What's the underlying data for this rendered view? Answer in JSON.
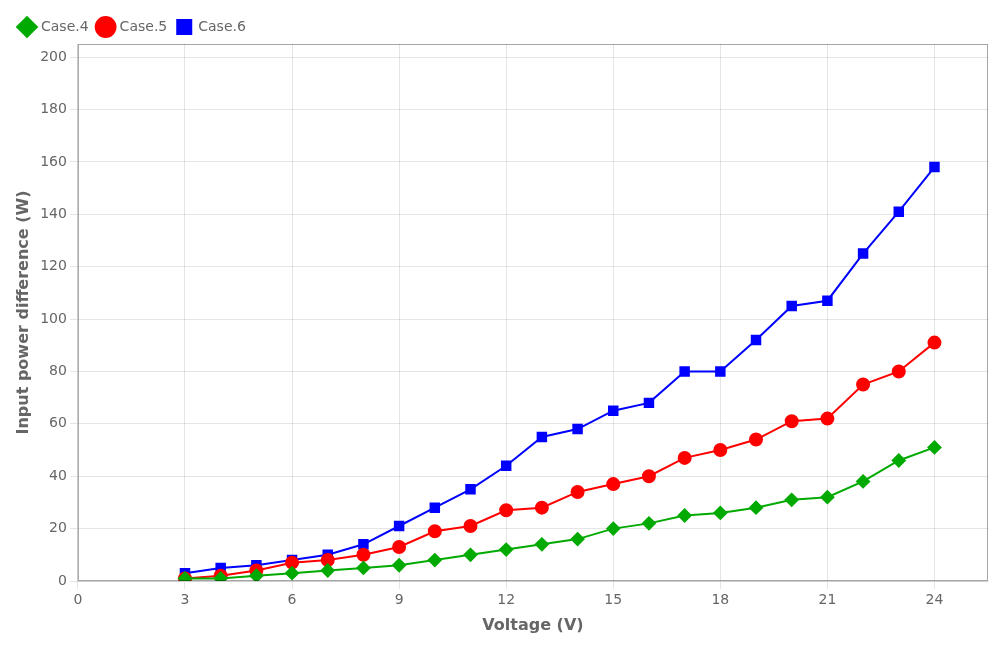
{
  "chart_data": {
    "type": "line",
    "x": [
      3,
      4,
      5,
      6,
      7,
      8,
      9,
      10,
      11,
      12,
      13,
      14,
      15,
      16,
      17,
      18,
      19,
      20,
      21,
      22,
      23,
      24
    ],
    "series": [
      {
        "name": "Case.4",
        "color": "#00aa00",
        "marker": "diamond",
        "values": [
          1,
          1,
          2,
          3,
          4,
          5,
          6,
          8,
          10,
          12,
          14,
          16,
          20,
          22,
          25,
          26,
          28,
          31,
          32,
          38,
          46,
          51
        ]
      },
      {
        "name": "Case.5",
        "color": "#ff0000",
        "marker": "circle",
        "values": [
          1,
          2,
          4,
          7,
          8,
          10,
          13,
          19,
          21,
          27,
          28,
          34,
          37,
          40,
          47,
          50,
          54,
          61,
          62,
          75,
          80,
          91
        ]
      },
      {
        "name": "Case.6",
        "color": "#0000ff",
        "marker": "square",
        "values": [
          3,
          5,
          6,
          8,
          10,
          14,
          21,
          28,
          35,
          44,
          55,
          58,
          65,
          68,
          80,
          80,
          92,
          105,
          107,
          125,
          141,
          158
        ]
      }
    ],
    "xlabel": "Voltage (V)",
    "ylabel": "Input power difference (W)",
    "xlim": [
      0,
      25.5
    ],
    "ylim": [
      0,
      205
    ],
    "xticks": [
      0,
      3,
      6,
      9,
      12,
      15,
      18,
      21,
      24
    ],
    "yticks": [
      0,
      20,
      40,
      60,
      80,
      100,
      120,
      140,
      160,
      180,
      200
    ],
    "grid": true,
    "legend": "upper left"
  }
}
